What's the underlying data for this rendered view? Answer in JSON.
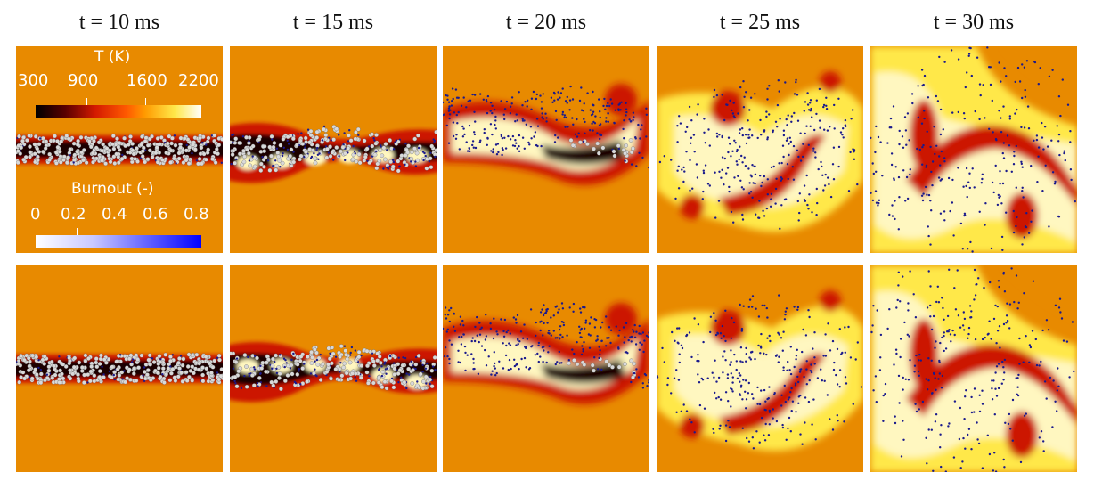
{
  "titles": [
    "t = 10 ms",
    "t = 15 ms",
    "t = 20 ms",
    "t = 25 ms",
    "t = 30 ms"
  ],
  "legend_temperature": {
    "title": "T (K)",
    "ticks": [
      "300",
      "900",
      "1600",
      "2200"
    ],
    "colormap": [
      "#000000",
      "#5a0000",
      "#d41a00",
      "#ff5a00",
      "#ff9a00",
      "#ffe84a",
      "#ffffff"
    ]
  },
  "legend_burnout": {
    "title": "Burnout (-)",
    "ticks": [
      "0",
      "0.2",
      "0.4",
      "0.6",
      "0.8"
    ],
    "colormap": [
      "#ffffff",
      "#c8c8ff",
      "#6a6aff",
      "#0000ff"
    ]
  },
  "colors": {
    "ambient": "#e88a00",
    "hot": "#fff7c0",
    "cool_core": "#1a0000",
    "reaction_zone": "#cc1800",
    "particle_unburnt": "#d9d9d9",
    "particle_burnt": "#1a1a8c"
  }
}
